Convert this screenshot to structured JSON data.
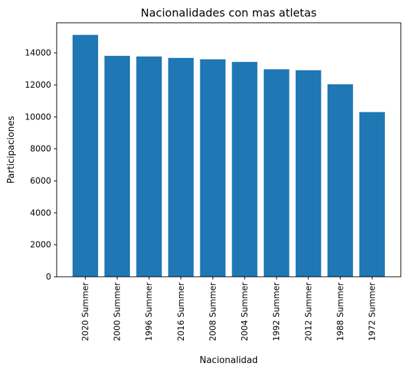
{
  "chart_data": {
    "type": "bar",
    "title": "Nacionalidades con mas atletas",
    "xlabel": "Nacionalidad",
    "ylabel": "Participaciones",
    "categories": [
      "2020 Summer",
      "2000 Summer",
      "1996 Summer",
      "2016 Summer",
      "2008 Summer",
      "2004 Summer",
      "1992 Summer",
      "2012 Summer",
      "1988 Summer",
      "1972 Summer"
    ],
    "values": [
      15130,
      13820,
      13780,
      13690,
      13600,
      13440,
      12980,
      12920,
      12040,
      10300
    ],
    "ylim": [
      0,
      15888
    ],
    "yticks": [
      0,
      2000,
      4000,
      6000,
      8000,
      10000,
      12000,
      14000
    ],
    "bar_color": "#1f77b4",
    "grid": false,
    "legend": "none"
  }
}
